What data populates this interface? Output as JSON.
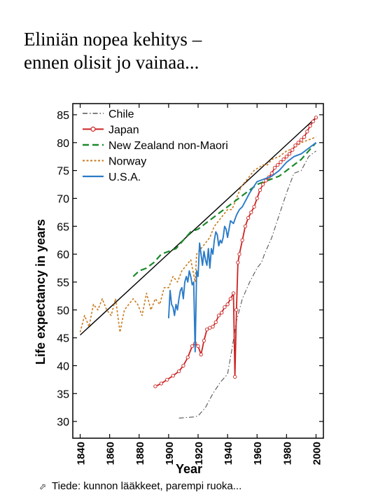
{
  "slide": {
    "title_line1": "Eliniän nopea kehitys –",
    "title_line2": "ennen olisit jo vainaa...",
    "footnote": "Tiede: kunnon lääkkeet, parempi ruoka..."
  },
  "chart_data": {
    "type": "line",
    "title": "",
    "xlabel": "Year",
    "ylabel": "Life expectancy in years",
    "xlim": [
      1835,
      2005
    ],
    "ylim": [
      27,
      87
    ],
    "xticks": [
      1840,
      1860,
      1880,
      1900,
      1920,
      1940,
      1960,
      1980,
      2000
    ],
    "yticks": [
      30,
      35,
      40,
      45,
      50,
      55,
      60,
      65,
      70,
      75,
      80,
      85
    ],
    "grid": false,
    "legend_position": "top-left",
    "trend_line": {
      "x": [
        1840,
        2000
      ],
      "y": [
        45.5,
        84.5
      ],
      "color": "#000000"
    },
    "series": [
      {
        "name": "Chile",
        "color": "#555555",
        "style": "dashdot",
        "x": [
          1907,
          1912,
          1917,
          1920,
          1925,
          1930,
          1935,
          1940,
          1943,
          1946,
          1950,
          1955,
          1960,
          1963,
          1965,
          1970,
          1975,
          1980,
          1985,
          1990,
          1995,
          2000
        ],
        "y": [
          30.6,
          30.7,
          30.8,
          31,
          32.5,
          35,
          37,
          38.5,
          43,
          48,
          52,
          55,
          57.5,
          58.5,
          60,
          63,
          67,
          71,
          74.5,
          75,
          77.5,
          78.5
        ]
      },
      {
        "name": "Japan",
        "color": "#cc2222",
        "style": "solid-markers",
        "x": [
          1891,
          1895,
          1899,
          1903,
          1907,
          1910,
          1913,
          1916,
          1918,
          1920,
          1922,
          1924,
          1926,
          1928,
          1930,
          1932,
          1934,
          1936,
          1938,
          1940,
          1942,
          1944,
          1945,
          1946,
          1947,
          1948,
          1950,
          1952,
          1954,
          1956,
          1958,
          1960,
          1962,
          1964,
          1966,
          1968,
          1970,
          1972,
          1974,
          1976,
          1978,
          1980,
          1982,
          1984,
          1986,
          1988,
          1990,
          1992,
          1994,
          1996,
          1998,
          2000
        ],
        "y": [
          36.3,
          36.8,
          37.5,
          38.2,
          39,
          40,
          41.5,
          43.5,
          44,
          43.5,
          42,
          44.5,
          46.5,
          46.8,
          47,
          47.8,
          49,
          49.5,
          50.5,
          51,
          52,
          53,
          38,
          50,
          58.5,
          60,
          62.5,
          65,
          66.5,
          67.5,
          68.5,
          70,
          71.5,
          72.5,
          73.2,
          73.8,
          74.5,
          75.5,
          76,
          76.5,
          77,
          77.5,
          78,
          78.7,
          79.5,
          80,
          80.5,
          81,
          82,
          83,
          83.8,
          84.5
        ]
      },
      {
        "name": "New Zealand non-Maori",
        "color": "#1a8a2a",
        "style": "dashed",
        "x": [
          1876,
          1880,
          1885,
          1890,
          1895,
          1900,
          1905,
          1910,
          1915,
          1920,
          1925,
          1930,
          1935,
          1940,
          1945,
          1950,
          1955,
          1960,
          1965,
          1970,
          1975,
          1980,
          1985,
          1990,
          1995,
          2000
        ],
        "y": [
          56,
          57,
          57.5,
          58.5,
          60,
          60.5,
          61,
          62.5,
          64,
          64.5,
          65.5,
          66.5,
          67.5,
          68.5,
          69.5,
          70.5,
          71.5,
          72.5,
          73,
          73.5,
          74,
          75,
          76,
          77,
          78.5,
          80
        ]
      },
      {
        "name": "Norway",
        "color": "#c87a1e",
        "style": "dotted",
        "x": [
          1840,
          1843,
          1846,
          1849,
          1852,
          1855,
          1858,
          1861,
          1864,
          1867,
          1870,
          1873,
          1876,
          1879,
          1882,
          1885,
          1888,
          1891,
          1894,
          1897,
          1900,
          1903,
          1906,
          1909,
          1912,
          1915,
          1918,
          1919,
          1922,
          1925,
          1928,
          1931,
          1934,
          1937,
          1940,
          1943,
          1946,
          1949,
          1952,
          1955,
          1958,
          1961,
          1964,
          1967,
          1970,
          1975,
          1980,
          1985,
          1990,
          1995,
          2000
        ],
        "y": [
          46,
          49,
          47,
          51,
          50,
          52,
          50,
          49,
          52,
          46,
          50,
          51,
          52,
          51,
          49,
          53,
          50,
          52,
          51,
          54,
          54,
          56,
          55,
          57,
          58,
          59,
          55,
          60,
          61,
          62,
          63,
          65,
          66,
          67,
          68,
          68,
          70,
          72,
          73,
          74,
          75,
          75.5,
          76,
          76,
          77,
          77.5,
          78.5,
          79,
          80,
          80.5,
          81
        ]
      },
      {
        "name": "U.S.A.",
        "color": "#2b7bc8",
        "style": "solid",
        "x": [
          1900,
          1901,
          1902,
          1903,
          1904,
          1905,
          1906,
          1907,
          1908,
          1909,
          1910,
          1911,
          1912,
          1913,
          1914,
          1915,
          1916,
          1917,
          1918,
          1919,
          1920,
          1921,
          1922,
          1923,
          1924,
          1925,
          1926,
          1927,
          1928,
          1929,
          1930,
          1931,
          1932,
          1933,
          1934,
          1935,
          1936,
          1937,
          1938,
          1939,
          1940,
          1942,
          1944,
          1946,
          1948,
          1950,
          1955,
          1960,
          1965,
          1970,
          1975,
          1980,
          1985,
          1990,
          1995,
          2000
        ],
        "y": [
          48.5,
          53.5,
          51,
          50.5,
          49,
          51,
          50,
          52,
          53.5,
          54,
          52,
          55,
          56,
          55,
          57,
          56,
          54.5,
          55,
          42.5,
          57,
          56,
          62,
          60,
          58,
          60.5,
          59,
          58,
          61,
          57.5,
          61,
          60,
          62.5,
          64,
          63.5,
          61.5,
          62.5,
          62,
          63,
          65,
          64.5,
          63,
          66,
          65.5,
          67,
          68,
          68.5,
          71,
          73,
          73.5,
          74,
          75,
          76.5,
          77.5,
          78,
          79,
          80
        ]
      }
    ]
  }
}
